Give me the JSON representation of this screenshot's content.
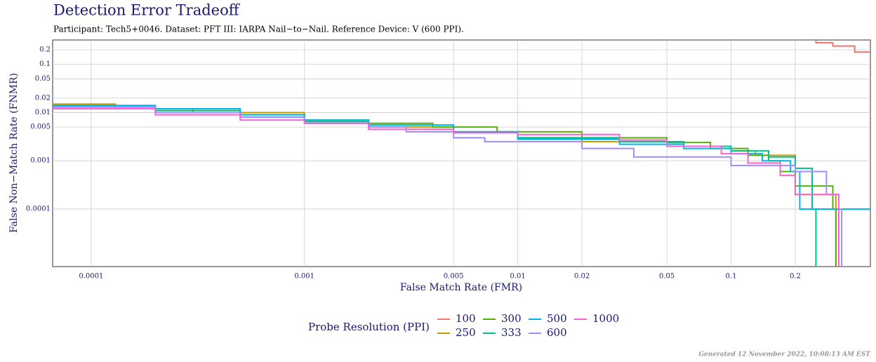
{
  "chart_data": {
    "type": "step",
    "title": "Detection Error Tradeoff",
    "subtitle": "Participant: Tech5+0046. Dataset: PFT III: IARPA Nail−to−Nail. Reference Device: V (600 PPI).",
    "x_label": "False Match Rate (FMR)",
    "y_label": "False Non−Match Rate (FNMR)",
    "legend_title": "Probe Resolution (PPI)",
    "footer": "Generated 12 November 2022, 10:08:13 AM EST",
    "log_x": true,
    "log_y": true,
    "grid": true,
    "xlim": [
      6.6e-05,
      0.45
    ],
    "ylim": [
      6.4e-06,
      0.32
    ],
    "xticks": [
      0.0001,
      0.001,
      0.005,
      0.01,
      0.02,
      0.05,
      0.1,
      0.2
    ],
    "yticks": [
      0.0001,
      0.001,
      0.005,
      0.01,
      0.02,
      0.05,
      0.1,
      0.2
    ],
    "series": [
      {
        "name": "100",
        "color": "#F8766D",
        "x": [
          0.2,
          0.25,
          0.3,
          0.38,
          0.45
        ],
        "values": [
          0.32,
          0.28,
          0.24,
          0.18,
          0.12
        ]
      },
      {
        "name": "250",
        "color": "#C49A00",
        "x": [
          6.6e-05,
          0.0001,
          0.00013,
          0.0003,
          0.001,
          0.002,
          0.005,
          0.01,
          0.02,
          0.05,
          0.1,
          0.13,
          0.2,
          0.3,
          0.31
        ],
        "values": [
          0.015,
          0.015,
          0.012,
          0.01,
          0.007,
          0.005,
          0.004,
          0.003,
          0.0025,
          0.002,
          0.0016,
          0.0013,
          0.0002,
          0.0002,
          6.4e-06
        ]
      },
      {
        "name": "300",
        "color": "#53B400",
        "x": [
          6.6e-05,
          0.0002,
          0.0005,
          0.001,
          0.002,
          0.004,
          0.008,
          0.02,
          0.05,
          0.08,
          0.12,
          0.15,
          0.17,
          0.2,
          0.3,
          0.31
        ],
        "values": [
          0.013,
          0.011,
          0.009,
          0.007,
          0.006,
          0.005,
          0.004,
          0.003,
          0.0024,
          0.0018,
          0.0013,
          0.001,
          0.0006,
          0.0003,
          0.0001,
          6.4e-06
        ]
      },
      {
        "name": "333",
        "color": "#00C094",
        "x": [
          6.6e-05,
          0.0002,
          0.0005,
          0.001,
          0.002,
          0.005,
          0.01,
          0.03,
          0.06,
          0.1,
          0.15,
          0.2,
          0.24,
          0.25
        ],
        "values": [
          0.014,
          0.011,
          0.008,
          0.0065,
          0.0055,
          0.004,
          0.003,
          0.0025,
          0.002,
          0.0016,
          0.0012,
          0.0007,
          0.0001,
          6.4e-06
        ]
      },
      {
        "name": "500",
        "color": "#00B6EB",
        "x": [
          6.6e-05,
          0.0002,
          0.0005,
          0.001,
          0.002,
          0.005,
          0.01,
          0.03,
          0.06,
          0.1,
          0.14,
          0.19,
          0.21,
          0.3,
          0.45
        ],
        "values": [
          0.014,
          0.012,
          0.009,
          0.007,
          0.0055,
          0.004,
          0.0028,
          0.0022,
          0.0018,
          0.0014,
          0.001,
          0.0006,
          0.0001,
          0.0001,
          0.0001
        ]
      },
      {
        "name": "600",
        "color": "#A58AFF",
        "x": [
          6.6e-05,
          0.0002,
          0.0005,
          0.001,
          0.002,
          0.003,
          0.005,
          0.007,
          0.02,
          0.035,
          0.1,
          0.2,
          0.28,
          0.32,
          0.33
        ],
        "values": [
          0.013,
          0.01,
          0.008,
          0.006,
          0.005,
          0.004,
          0.003,
          0.0025,
          0.0018,
          0.0012,
          0.0008,
          0.0006,
          0.0002,
          0.0001,
          6.4e-06
        ]
      },
      {
        "name": "1000",
        "color": "#FB61D7",
        "x": [
          6.6e-05,
          0.0002,
          0.0005,
          0.001,
          0.002,
          0.005,
          0.01,
          0.03,
          0.05,
          0.09,
          0.12,
          0.17,
          0.2,
          0.3,
          0.32
        ],
        "values": [
          0.012,
          0.009,
          0.007,
          0.006,
          0.0045,
          0.0038,
          0.0035,
          0.0027,
          0.002,
          0.0014,
          0.0009,
          0.0005,
          0.0002,
          0.0002,
          6.4e-06
        ]
      }
    ]
  }
}
